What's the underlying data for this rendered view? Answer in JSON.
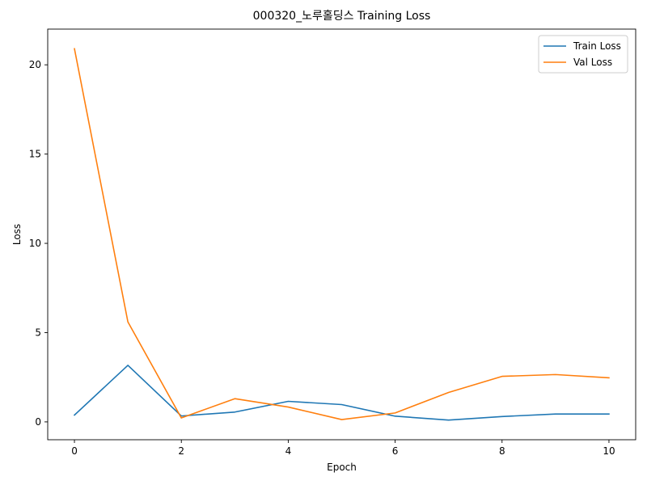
{
  "chart_data": {
    "type": "line",
    "title": "000320_노루홀딩스 Training Loss",
    "xlabel": "Epoch",
    "ylabel": "Loss",
    "x": [
      0,
      1,
      2,
      3,
      4,
      5,
      6,
      7,
      8,
      9,
      10
    ],
    "xlim": [
      -0.5,
      10.5
    ],
    "ylim": [
      -1.0,
      22.0
    ],
    "xticks": [
      0,
      2,
      4,
      6,
      8,
      10
    ],
    "yticks": [
      0,
      5,
      10,
      15,
      20
    ],
    "grid": false,
    "legend_position": "top-right",
    "series": [
      {
        "name": "Train Loss",
        "color": "#1f77b4",
        "values": [
          0.38,
          3.17,
          0.33,
          0.55,
          1.15,
          0.97,
          0.32,
          0.1,
          0.3,
          0.44,
          0.44
        ]
      },
      {
        "name": "Val Loss",
        "color": "#ff7f0e",
        "values": [
          20.9,
          5.6,
          0.22,
          1.3,
          0.83,
          0.13,
          0.5,
          1.65,
          2.55,
          2.65,
          2.47
        ]
      }
    ]
  }
}
